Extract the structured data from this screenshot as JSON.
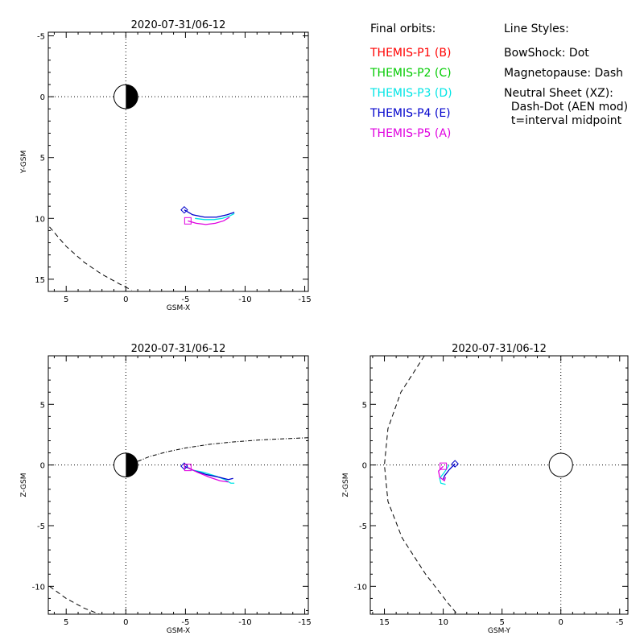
{
  "legend": {
    "orbits_title": "Final orbits:",
    "styles_title": "Line Styles:",
    "probes": [
      {
        "label": "THEMIS-P1 (B)",
        "color": "#ff0000"
      },
      {
        "label": "THEMIS-P2 (C)",
        "color": "#00cc00"
      },
      {
        "label": "THEMIS-P3 (D)",
        "color": "#00e5e5"
      },
      {
        "label": "THEMIS-P4 (E)",
        "color": "#0000cc"
      },
      {
        "label": "THEMIS-P5 (A)",
        "color": "#e000e0"
      }
    ],
    "styles": [
      "BowShock: Dot",
      "Magnetopause: Dash",
      "Neutral Sheet (XZ):",
      "  Dash-Dot (AEN mod)",
      "  t=interval midpoint"
    ]
  },
  "chart_data": [
    {
      "type": "line",
      "panel": "xy",
      "title": "2020-07-31/06-12",
      "xlabel": "GSM-X",
      "ylabel": "Y-GSM",
      "xlim": [
        6.5,
        -15.3
      ],
      "ylim": [
        16.0,
        -5.3
      ],
      "xticks": [
        5,
        0,
        -5,
        -10,
        -15
      ],
      "yticks": [
        -5,
        0,
        5,
        10,
        15
      ],
      "xtick_labels": [
        "5",
        "0",
        "-5",
        "-10",
        "-15"
      ],
      "ytick_labels": [
        "-5",
        "0",
        "5",
        "10",
        "15"
      ],
      "earth": {
        "x": 0,
        "y": 0
      },
      "magnetopause": {
        "x": [
          6.4,
          5.0,
          3.5,
          2.0,
          0.5,
          -0.5
        ],
        "y": [
          10.7,
          12.3,
          13.6,
          14.6,
          15.4,
          15.9
        ]
      },
      "series": [
        {
          "probe": "P3",
          "x": [
            -5.8,
            -6.6,
            -7.4,
            -8.1,
            -8.7,
            -9.1
          ],
          "y": [
            10.0,
            10.1,
            10.1,
            10.0,
            9.8,
            9.6
          ]
        },
        {
          "probe": "P4",
          "x": [
            -4.9,
            -5.6,
            -6.6,
            -7.6,
            -8.5,
            -9.1
          ],
          "y": [
            9.3,
            9.7,
            9.9,
            9.9,
            9.7,
            9.5
          ]
        },
        {
          "probe": "P5",
          "x": [
            -5.2,
            -5.9,
            -6.7,
            -7.5,
            -8.2,
            -8.7
          ],
          "y": [
            10.2,
            10.4,
            10.5,
            10.4,
            10.2,
            9.9
          ]
        }
      ],
      "start_markers": [
        {
          "probe": "P4",
          "shape": "diamond",
          "x": -4.9,
          "y": 9.3
        },
        {
          "probe": "P5",
          "shape": "square",
          "x": -5.2,
          "y": 10.2
        }
      ]
    },
    {
      "type": "line",
      "panel": "xz",
      "title": "2020-07-31/06-12",
      "xlabel": "GSM-X",
      "ylabel": "Z-GSM",
      "xlim": [
        6.5,
        -15.3
      ],
      "ylim": [
        -12.3,
        9.0
      ],
      "xticks": [
        5,
        0,
        -5,
        -10,
        -15
      ],
      "yticks": [
        5,
        0,
        -5,
        -10
      ],
      "xtick_labels": [
        "5",
        "0",
        "-5",
        "-10",
        "-15"
      ],
      "ytick_labels": [
        "5",
        "0",
        "-5",
        "-10"
      ],
      "earth": {
        "x": 0,
        "y": 0
      },
      "magnetopause": {
        "x": [
          6.4,
          5.0,
          3.5,
          2.2
        ],
        "y": [
          -10.0,
          -11.0,
          -11.8,
          -12.3
        ]
      },
      "neutral_sheet": {
        "x": [
          -1.0,
          -2.0,
          -3.5,
          -5.0,
          -7.0,
          -9.0,
          -11.0,
          -13.0,
          -15.3
        ],
        "y": [
          0.3,
          0.7,
          1.1,
          1.4,
          1.7,
          1.9,
          2.05,
          2.15,
          2.25
        ]
      },
      "series": [
        {
          "probe": "P3",
          "x": [
            -5.5,
            -6.5,
            -7.5,
            -8.3,
            -8.8,
            -9.1
          ],
          "y": [
            -0.4,
            -0.6,
            -0.9,
            -1.2,
            -1.5,
            -1.5
          ]
        },
        {
          "probe": "P4",
          "x": [
            -4.9,
            -5.8,
            -6.8,
            -7.8,
            -8.6,
            -9.0
          ],
          "y": [
            -0.1,
            -0.5,
            -0.8,
            -1.0,
            -1.2,
            -1.1
          ]
        },
        {
          "probe": "P5",
          "x": [
            -5.2,
            -6.0,
            -7.0,
            -7.9,
            -8.6
          ],
          "y": [
            -0.2,
            -0.6,
            -1.0,
            -1.3,
            -1.4
          ]
        }
      ],
      "start_markers": [
        {
          "probe": "P4",
          "shape": "diamond",
          "x": -4.9,
          "y": -0.1
        },
        {
          "probe": "P5",
          "shape": "square",
          "x": -5.2,
          "y": -0.2
        }
      ]
    },
    {
      "type": "line",
      "panel": "yz",
      "title": "2020-07-31/06-12",
      "xlabel": "GSM-Y",
      "ylabel": "Z-GSM",
      "xlim": [
        16.2,
        -5.7
      ],
      "ylim": [
        -12.3,
        9.0
      ],
      "xticks": [
        15,
        10,
        5,
        0,
        -5
      ],
      "yticks": [
        5,
        0,
        -5,
        -10
      ],
      "xtick_labels": [
        "15",
        "10",
        "5",
        "0",
        "-5"
      ],
      "ytick_labels": [
        "5",
        "0",
        "-5",
        "-10"
      ],
      "earth": {
        "x": 0,
        "y": 0
      },
      "magnetopause": {
        "x": [
          11.6,
          13.6,
          14.7,
          15.0,
          14.7,
          13.5,
          11.5,
          9.5,
          8.8
        ],
        "y": [
          9.0,
          6.0,
          3.0,
          0.0,
          -3.0,
          -6.0,
          -9.0,
          -11.5,
          -12.3
        ]
      },
      "series": [
        {
          "probe": "P3",
          "x": [
            9.5,
            9.9,
            10.3,
            10.2,
            9.8
          ],
          "y": [
            0.0,
            -0.6,
            -1.1,
            -1.5,
            -1.6
          ]
        },
        {
          "probe": "P4",
          "x": [
            9.0,
            9.5,
            9.9,
            10.0
          ],
          "y": [
            0.1,
            -0.4,
            -0.9,
            -1.2
          ]
        },
        {
          "probe": "P5",
          "x": [
            10.0,
            10.4,
            10.3,
            9.9,
            9.8
          ],
          "y": [
            -0.1,
            -0.5,
            -1.0,
            -1.3,
            -1.0
          ]
        }
      ],
      "start_markers": [
        {
          "probe": "P4",
          "shape": "diamond",
          "x": 9.0,
          "y": 0.1
        },
        {
          "probe": "P5",
          "shape": "square",
          "x": 10.0,
          "y": -0.1
        }
      ]
    }
  ]
}
